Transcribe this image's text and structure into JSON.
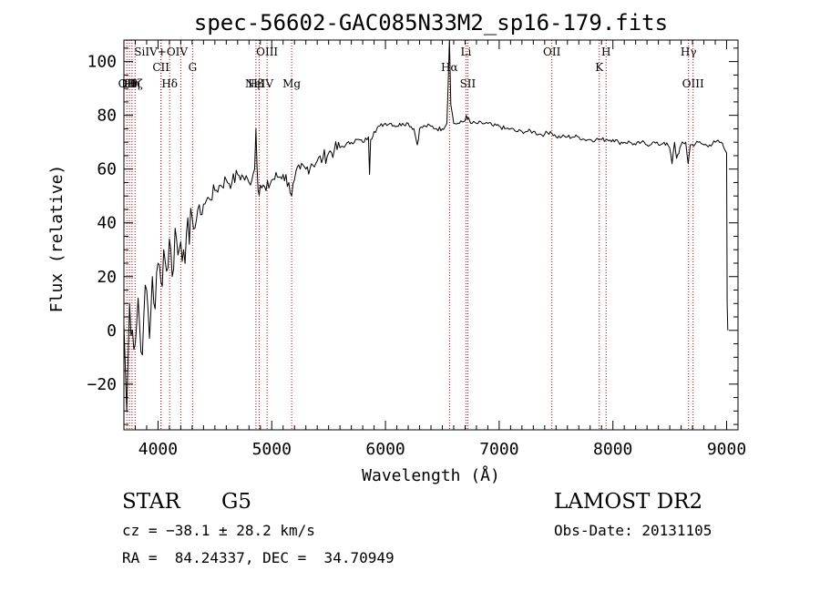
{
  "chart_data": {
    "type": "line",
    "title": "spec-56602-GAC085N33M2_sp16-179.fits",
    "xlabel": "Wavelength (Å)",
    "ylabel": "Flux (relative)",
    "xlim": [
      3700,
      9100
    ],
    "ylim": [
      -37,
      108
    ],
    "xticks": [
      4000,
      5000,
      6000,
      7000,
      8000,
      9000
    ],
    "yticks": [
      -20,
      0,
      20,
      40,
      60,
      80,
      100
    ],
    "tick_labels_x": [
      "4000",
      "5000",
      "6000",
      "7000",
      "8000",
      "9000"
    ],
    "tick_labels_y": [
      "−20",
      "0",
      "20",
      "40",
      "60",
      "80",
      "100"
    ],
    "grid": false,
    "series": [
      {
        "x": [
          3700,
          3725,
          3750,
          3775,
          3800,
          3825,
          3850,
          3875,
          3900,
          3925,
          3950,
          3975,
          4000,
          4025,
          4050,
          4075,
          4100,
          4125,
          4150,
          4175,
          4200,
          4225,
          4250,
          4275,
          4300,
          4325,
          4350,
          4375,
          4400,
          4450,
          4500,
          4550,
          4600,
          4650,
          4700,
          4750,
          4800,
          4850,
          4861,
          4880,
          4900,
          4950,
          5000,
          5050,
          5100,
          5150,
          5175,
          5200,
          5250,
          5300,
          5350,
          5400,
          5450,
          5500,
          5550,
          5600,
          5650,
          5700,
          5750,
          5800,
          5850,
          5860,
          5870,
          5900,
          5950,
          6000,
          6050,
          6100,
          6150,
          6200,
          6250,
          6280,
          6300,
          6350,
          6400,
          6450,
          6500,
          6540,
          6563,
          6575,
          6600,
          6650,
          6700,
          6710,
          6750,
          6800,
          6850,
          6900,
          6950,
          7000,
          7050,
          7100,
          7150,
          7200,
          7250,
          7300,
          7350,
          7400,
          7450,
          7500,
          7550,
          7600,
          7650,
          7700,
          7750,
          7800,
          7850,
          7900,
          7950,
          8000,
          8050,
          8100,
          8150,
          8200,
          8250,
          8300,
          8350,
          8400,
          8450,
          8498,
          8520,
          8542,
          8560,
          8600,
          8640,
          8662,
          8680,
          8700,
          8750,
          8800,
          8850,
          8900,
          8950,
          8975,
          9000,
          9005,
          9010
        ],
        "values": [
          2,
          -30,
          10,
          0,
          -5,
          12,
          -8,
          5,
          15,
          -3,
          20,
          8,
          25,
          18,
          30,
          22,
          34,
          20,
          38,
          28,
          33,
          30,
          36,
          32,
          42,
          38,
          45,
          43,
          47,
          49,
          52,
          54,
          56,
          55,
          58,
          57,
          55,
          60,
          75,
          52,
          54,
          52,
          56,
          57,
          58,
          55,
          50,
          56,
          60,
          60,
          62,
          63,
          64,
          66,
          67,
          68,
          69,
          70,
          71,
          70,
          72,
          58,
          71,
          74,
          76,
          77,
          77,
          76,
          77,
          77,
          75,
          69,
          75,
          76,
          76,
          75,
          75,
          77,
          108,
          84,
          77,
          77,
          78,
          80,
          77,
          77,
          77,
          77,
          76,
          76,
          75,
          75,
          74,
          74,
          74,
          74,
          73,
          73,
          74,
          72,
          72,
          72,
          72,
          72,
          71,
          71,
          71,
          71,
          71,
          71,
          70,
          70,
          70,
          69,
          70,
          69,
          70,
          69,
          70,
          68,
          62,
          70,
          64,
          69,
          70,
          62,
          69,
          69,
          70,
          69,
          69,
          70,
          70,
          68,
          66,
          10,
          0
        ]
      }
    ],
    "line_markers": [
      {
        "x": 3726,
        "label": "OII",
        "row": "bottom"
      },
      {
        "x": 3749,
        "label": "Hθ",
        "row": "bottom"
      },
      {
        "x": 3771,
        "label": "Hη",
        "row": "bottom"
      },
      {
        "x": 3798,
        "label": "Hζ",
        "row": "bottom"
      },
      {
        "x": 4026,
        "label": "SiIV+OIV",
        "row": "top"
      },
      {
        "x": 4026,
        "label": "CII",
        "row": "middle"
      },
      {
        "x": 4102,
        "label": "Hδ",
        "row": "bottom"
      },
      {
        "x": 4200,
        "label": "",
        "row": "none"
      },
      {
        "x": 4304,
        "label": "G",
        "row": "middle"
      },
      {
        "x": 4861,
        "label": "Hβ",
        "row": "bottom"
      },
      {
        "x": 4890,
        "label": "NeIV",
        "row": "bottom"
      },
      {
        "x": 4959,
        "label": "OIII",
        "row": "top"
      },
      {
        "x": 5175,
        "label": "Mg",
        "row": "bottom"
      },
      {
        "x": 6563,
        "label": "Hα",
        "row": "middle"
      },
      {
        "x": 6708,
        "label": "Li",
        "row": "top"
      },
      {
        "x": 6724,
        "label": "SII",
        "row": "bottom"
      },
      {
        "x": 7463,
        "label": "OII",
        "row": "top"
      },
      {
        "x": 7880,
        "label": "K",
        "row": "middle"
      },
      {
        "x": 7940,
        "label": "H",
        "row": "top"
      },
      {
        "x": 8665,
        "label": "Hγ",
        "row": "top"
      },
      {
        "x": 8705,
        "label": "OIII",
        "row": "bottom"
      }
    ]
  },
  "info": {
    "object_class": "STAR",
    "subclass": "G5",
    "survey": "LAMOST DR2",
    "cz": "cz = −38.1 ± 28.2 km/s",
    "obs_date": "Obs-Date: 20131105",
    "coords": "RA =  84.24337, DEC =  34.70949"
  }
}
